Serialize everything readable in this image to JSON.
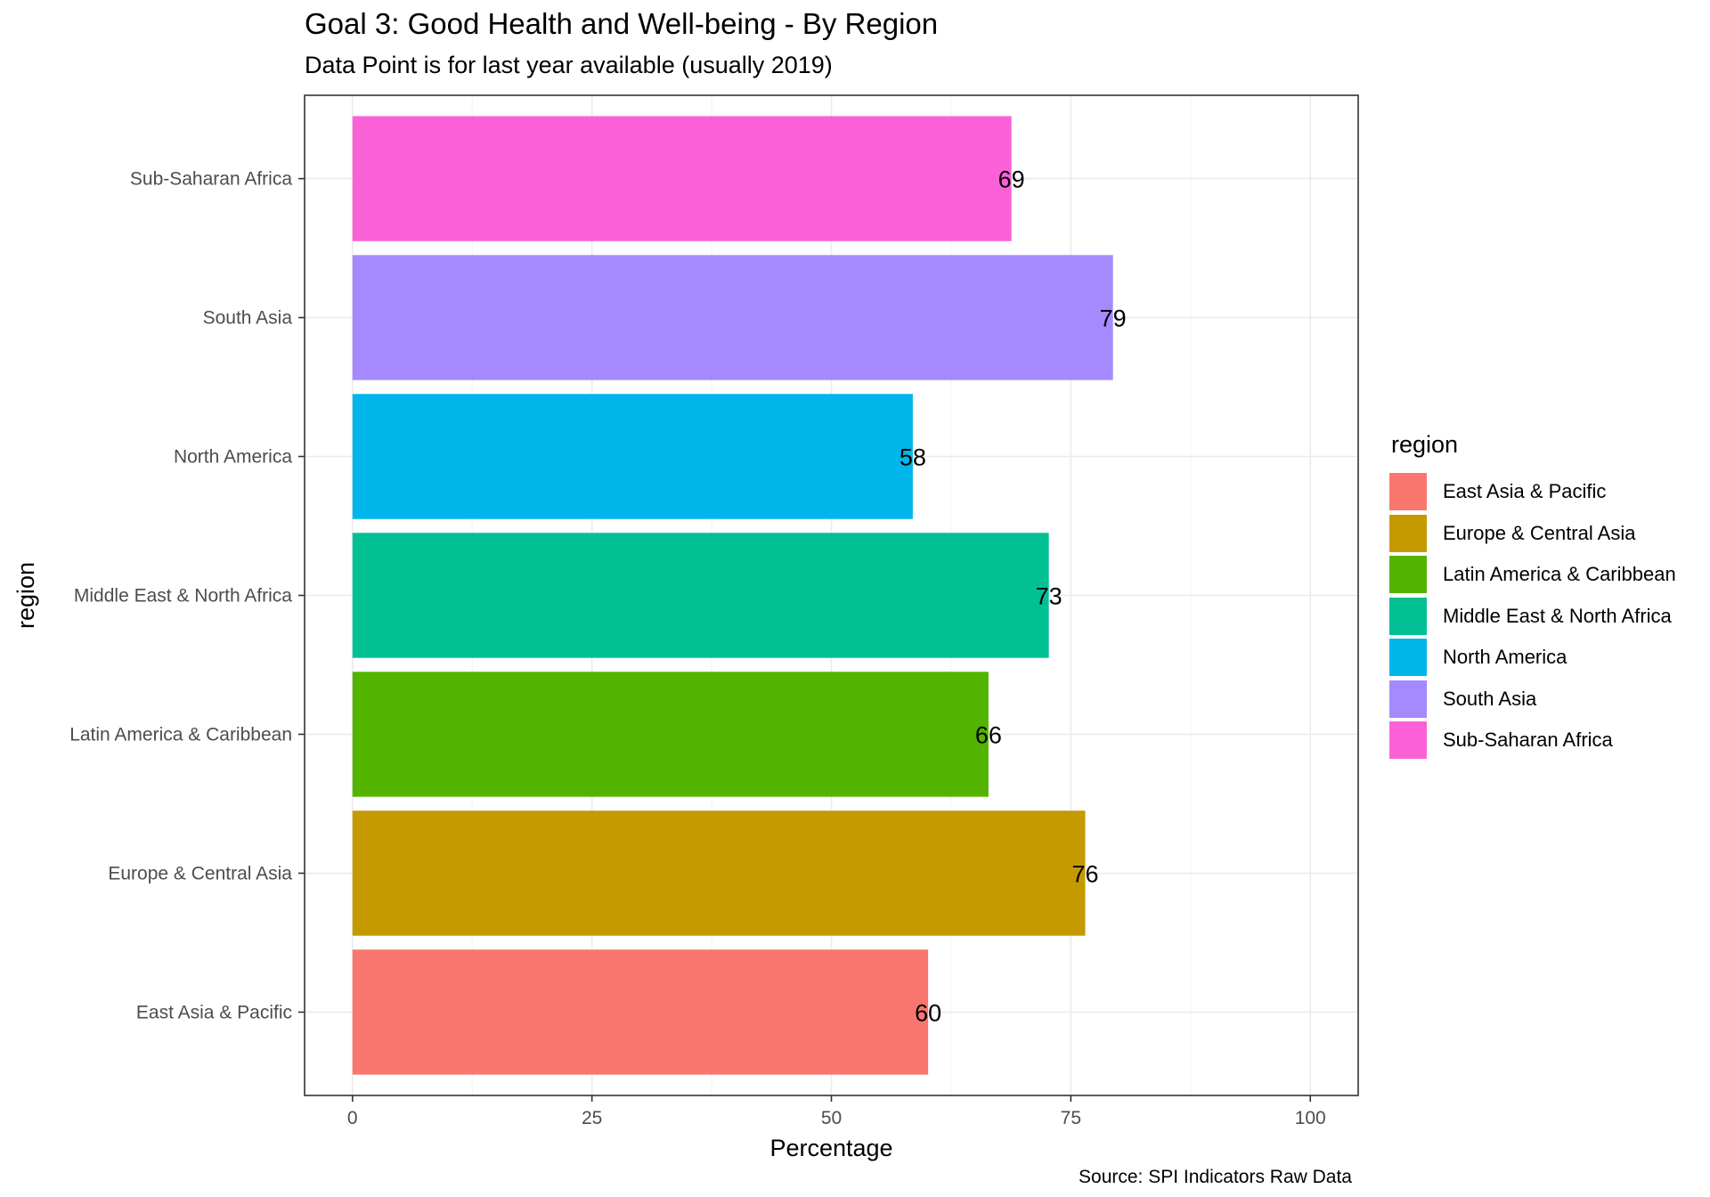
{
  "chart_data": {
    "type": "bar",
    "orientation": "horizontal",
    "title": "Goal 3: Good Health and Well-being - By Region",
    "subtitle": "Data Point is for last year available (usually 2019)",
    "caption": "Source: SPI Indicators Raw Data",
    "xlabel": "Percentage",
    "ylabel": "region",
    "xlim": [
      -5,
      105
    ],
    "x_ticks": [
      0,
      25,
      50,
      75,
      100
    ],
    "grid": true,
    "categories": [
      "East Asia & Pacific",
      "Europe & Central Asia",
      "Latin America & Caribbean",
      "Middle East & North Africa",
      "North America",
      "South Asia",
      "Sub-Saharan Africa"
    ],
    "values": [
      60.1,
      76.5,
      66.4,
      72.7,
      58.5,
      79.4,
      68.8
    ],
    "data_labels": [
      "60",
      "76",
      "66",
      "73",
      "58",
      "79",
      "69"
    ],
    "colors": [
      "#F8766D",
      "#C49A00",
      "#53B400",
      "#00C094",
      "#00B6EB",
      "#A58AFF",
      "#FB61D7"
    ],
    "legend": {
      "title": "region",
      "position": "right",
      "entries": [
        "East Asia & Pacific",
        "Europe & Central Asia",
        "Latin America & Caribbean",
        "Middle East & North Africa",
        "North America",
        "South Asia",
        "Sub-Saharan Africa"
      ]
    }
  }
}
